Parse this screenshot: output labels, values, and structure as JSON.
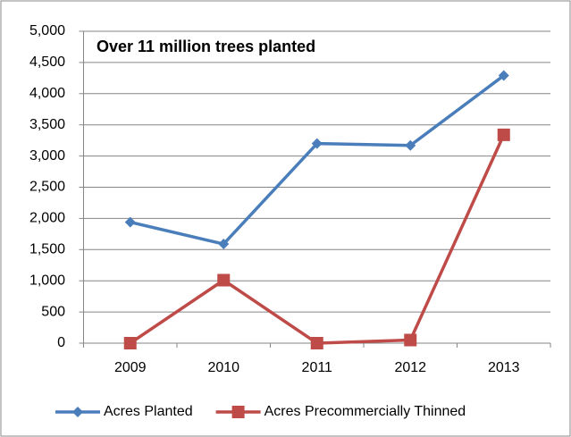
{
  "chart_data": {
    "type": "line",
    "annotation": "Over 11 million trees planted",
    "categories": [
      "2009",
      "2010",
      "2011",
      "2012",
      "2013"
    ],
    "series": [
      {
        "name": "Acres Planted",
        "color": "#4a7ebb",
        "marker": "diamond",
        "values": [
          1940,
          1590,
          3200,
          3170,
          4290
        ]
      },
      {
        "name": "Acres Precommercially Thinned",
        "color": "#be4b48",
        "marker": "square",
        "values": [
          0,
          1010,
          0,
          50,
          3340
        ]
      }
    ],
    "ylim": [
      0,
      5000
    ],
    "yticks": [
      0,
      500,
      {
        "value": 1000,
        "label": "1,000"
      },
      {
        "value": 1500,
        "label": "1,500"
      },
      {
        "value": 2000,
        "label": "2,000"
      },
      {
        "value": 2500,
        "label": "2,500"
      },
      {
        "value": 3000,
        "label": "3,000"
      },
      {
        "value": 3500,
        "label": "3,500"
      },
      {
        "value": 4000,
        "label": "4,000"
      },
      {
        "value": 4500,
        "label": "4,500"
      },
      {
        "value": 5000,
        "label": "5,000"
      }
    ],
    "grid": true,
    "legend": "bottom"
  }
}
